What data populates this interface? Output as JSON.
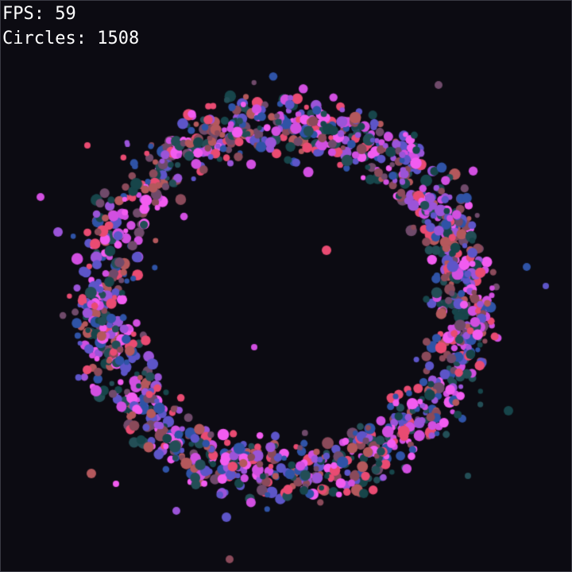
{
  "hud": {
    "fps_label": "FPS:",
    "fps_value": "59",
    "circles_label": "Circles:",
    "circles_value": "1508"
  },
  "simulation": {
    "circle_count": 1508,
    "colors": [
      "#e94b72",
      "#d14fe0",
      "#9b54d8",
      "#5d55c8",
      "#2f53a6",
      "#17454a",
      "#234e56",
      "#8a4a5a",
      "#b4585c",
      "#f25cf0",
      "#6f4a6a"
    ]
  }
}
